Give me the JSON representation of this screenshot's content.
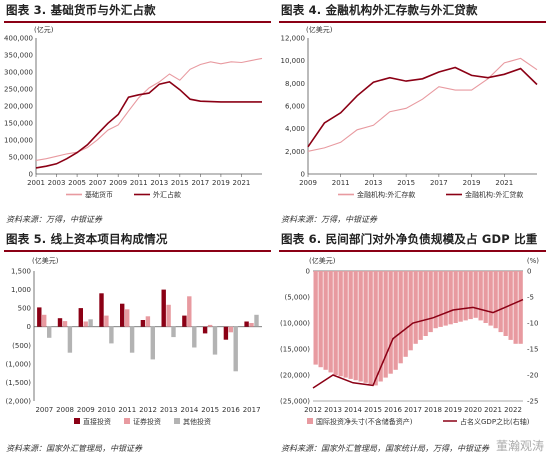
{
  "panels": [
    {
      "title": "图表 3. 基础货币与外汇占款",
      "source": "资料来源：万得，中银证券"
    },
    {
      "title": "图表 4. 金融机构外汇存款与外汇贷款",
      "source": "资料来源：万得，中银证券"
    },
    {
      "title": "图表 5. 线上资本项目构成情况",
      "source": "资料来源：国家外汇管理局，中银证券"
    },
    {
      "title": "图表 6. 民间部门对外净负债规模及占 GDP 比重",
      "source": "资料来源：国家外汇管理局，国家统计局，万得，中银证券"
    }
  ],
  "watermark": "董瀚观涛",
  "colors": {
    "dark": "#8b0015",
    "light": "#e89aa0",
    "gray": "#b3b3b3",
    "title_rule": "#8b0015"
  },
  "chart_data": [
    {
      "type": "line",
      "unit": "(亿元)",
      "ylim": [
        0,
        400000
      ],
      "yticks": [
        "0",
        "50,000",
        "100,000",
        "150,000",
        "200,000",
        "250,000",
        "300,000",
        "350,000",
        "400,000"
      ],
      "xticks": [
        "2001",
        "2003",
        "2005",
        "2007",
        "2009",
        "2011",
        "2013",
        "2015",
        "2017",
        "2019",
        "2021"
      ],
      "xlim": [
        2001,
        2023
      ],
      "legend": "bottom",
      "series": [
        {
          "name": "基础货币",
          "color": "#e89aa0",
          "x": [
            2001,
            2002,
            2003,
            2004,
            2005,
            2006,
            2007,
            2008,
            2009,
            2010,
            2011,
            2012,
            2013,
            2014,
            2015,
            2016,
            2017,
            2018,
            2019,
            2020,
            2021,
            2022,
            2023
          ],
          "y": [
            40000,
            45000,
            52000,
            59000,
            64000,
            78000,
            101000,
            129000,
            144000,
            185000,
            224000,
            253000,
            271000,
            294000,
            276000,
            308000,
            322000,
            330000,
            324000,
            330000,
            328000,
            334000,
            340000
          ]
        },
        {
          "name": "外汇占款",
          "color": "#8b0015",
          "x": [
            2001,
            2002,
            2003,
            2004,
            2005,
            2006,
            2007,
            2008,
            2009,
            2010,
            2011,
            2012,
            2013,
            2014,
            2015,
            2016,
            2017,
            2018,
            2019,
            2020,
            2021,
            2022,
            2023
          ],
          "y": [
            18000,
            23000,
            30000,
            45000,
            63000,
            86000,
            118000,
            149000,
            175000,
            226000,
            233000,
            238000,
            264000,
            271000,
            248000,
            220000,
            214000,
            213000,
            212000,
            212000,
            212000,
            212000,
            212000
          ]
        }
      ]
    },
    {
      "type": "line",
      "unit": "(亿美元)",
      "ylim": [
        0,
        12000
      ],
      "yticks": [
        "0",
        "2,000",
        "4,000",
        "6,000",
        "8,000",
        "10,000",
        "12,000"
      ],
      "xticks": [
        "2009",
        "2011",
        "2013",
        "2015",
        "2017",
        "2019",
        "2021"
      ],
      "xlim": [
        2009,
        2023
      ],
      "legend": "bottom",
      "series": [
        {
          "name": "金融机构:外汇存款",
          "color": "#e89aa0",
          "x": [
            2009,
            2010,
            2011,
            2012,
            2013,
            2014,
            2015,
            2016,
            2017,
            2018,
            2019,
            2020,
            2021,
            2022,
            2023
          ],
          "y": [
            2000,
            2300,
            2800,
            3900,
            4300,
            5500,
            5800,
            6600,
            7700,
            7400,
            7400,
            8400,
            9800,
            10200,
            9200
          ]
        },
        {
          "name": "金融机构:外汇贷款",
          "color": "#8b0015",
          "x": [
            2009,
            2010,
            2011,
            2012,
            2013,
            2014,
            2015,
            2016,
            2017,
            2018,
            2019,
            2020,
            2021,
            2022,
            2023
          ],
          "y": [
            2400,
            4500,
            5400,
            6900,
            8100,
            8500,
            8200,
            8400,
            9000,
            9400,
            8700,
            8500,
            8800,
            9300,
            7900
          ]
        }
      ]
    },
    {
      "type": "bar",
      "unit": "(亿美元)",
      "ylim": [
        -2000,
        1500
      ],
      "yticks": [
        "1,500",
        "1,000",
        "500",
        "0",
        "(500)",
        "(1,000)",
        "(1,500)",
        "(2,000)"
      ],
      "categories": [
        "2007",
        "2008",
        "2009",
        "2010",
        "2011",
        "2012",
        "2013",
        "2014",
        "2015",
        "2016",
        "2017"
      ],
      "legend": "bottom",
      "series": [
        {
          "name": "直接投资",
          "color": "#8b0015",
          "values": [
            520,
            230,
            500,
            900,
            620,
            180,
            1000,
            300,
            -180,
            -350,
            140
          ]
        },
        {
          "name": "证券投资",
          "color": "#e89aa0",
          "values": [
            320,
            150,
            140,
            300,
            470,
            280,
            590,
            820,
            50,
            -150,
            100
          ]
        },
        {
          "name": "其他投资",
          "color": "#b3b3b3",
          "values": [
            -300,
            -700,
            200,
            -450,
            -700,
            -880,
            -280,
            -560,
            -750,
            -1200,
            320
          ]
        }
      ]
    },
    {
      "type": "bar+line",
      "unit_left": "(亿美元)",
      "unit_right": "(%)",
      "ylim_left": [
        -25000,
        0
      ],
      "ylim_right": [
        -25,
        0
      ],
      "yticks_left": [
        "0",
        "(5,000)",
        "(10,000)",
        "(15,000)",
        "(20,000)",
        "(25,000)"
      ],
      "yticks_right": [
        "0",
        "-5",
        "-10",
        "-15",
        "-20",
        "-25"
      ],
      "xticks": [
        "2012",
        "2013",
        "2014",
        "2015",
        "2016",
        "2017",
        "2018",
        "2019",
        "2020",
        "2021",
        "2022"
      ],
      "xlim": [
        2012,
        2022.5
      ],
      "legend": "bottom",
      "series": [
        {
          "name": "国际投资净头寸(不含储备资产)",
          "color": "#e89aa0",
          "type": "bar",
          "x": [
            2012,
            2013,
            2014,
            2015,
            2016,
            2017,
            2018,
            2019,
            2020,
            2021,
            2022
          ],
          "y": [
            -18000,
            -20000,
            -21000,
            -22000,
            -19000,
            -14000,
            -11000,
            -10000,
            -9000,
            -11000,
            -14000
          ]
        },
        {
          "name": "占名义GDP之比(右轴)",
          "color": "#8b0015",
          "type": "line",
          "x": [
            2012,
            2013,
            2014,
            2015,
            2016,
            2017,
            2018,
            2019,
            2020,
            2021,
            2022.5
          ],
          "y": [
            -22.5,
            -20.0,
            -21.5,
            -22.0,
            -13.0,
            -10.0,
            -9.0,
            -7.5,
            -7.0,
            -8.0,
            -5.5
          ]
        }
      ]
    }
  ]
}
